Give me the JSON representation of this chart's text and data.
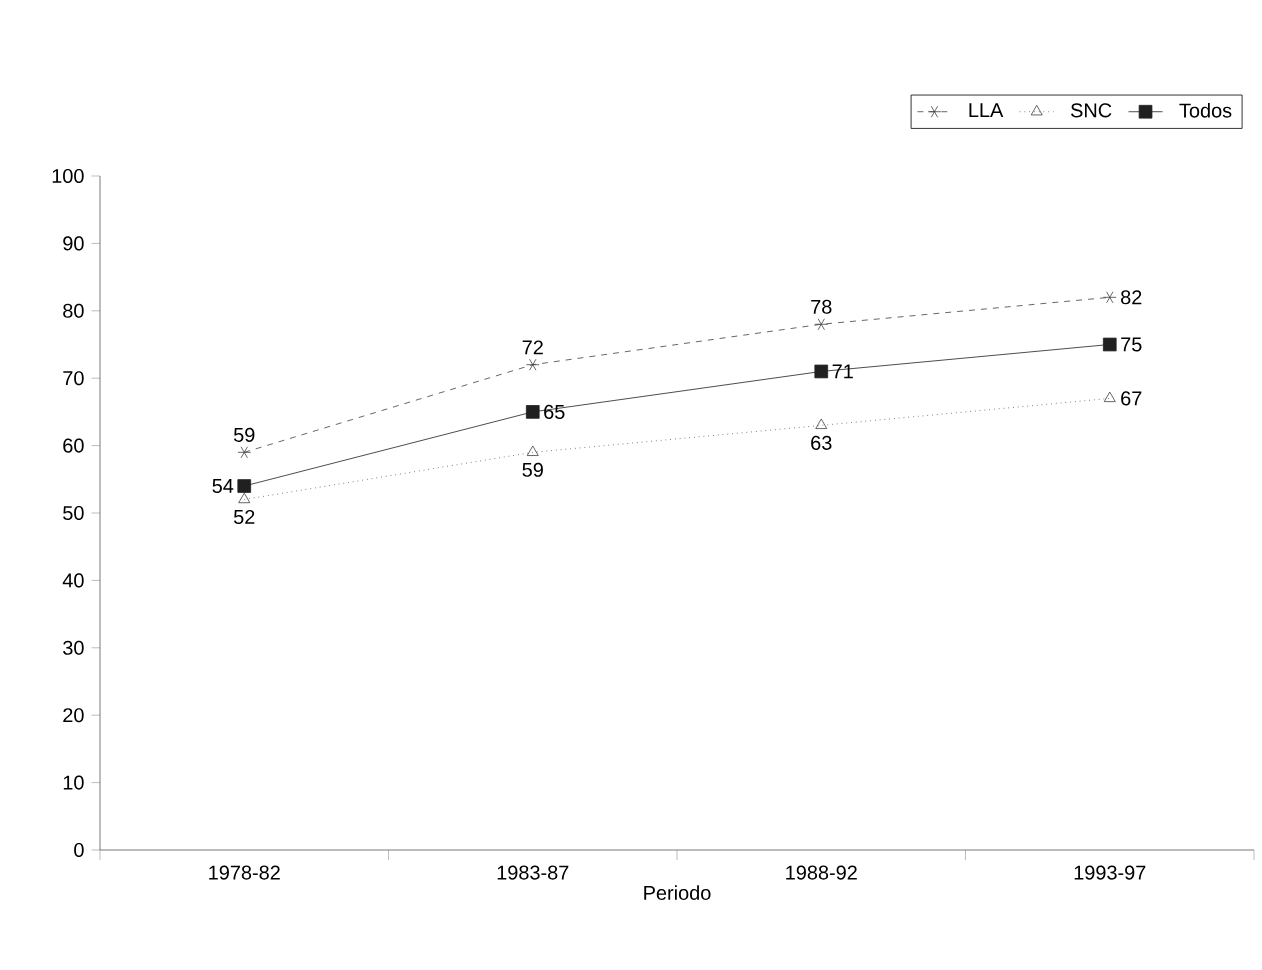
{
  "chart_data": {
    "type": "line",
    "xlabel": "Periodo",
    "categories": [
      "1978-82",
      "1983-87",
      "1988-92",
      "1993-97"
    ],
    "series": [
      {
        "name": "LLA",
        "color": "#404040",
        "values": [
          59,
          72,
          78,
          82
        ],
        "marker": "cross",
        "line_style": "dashed"
      },
      {
        "name": "SNC",
        "color": "#404040",
        "values": [
          52,
          59,
          63,
          67
        ],
        "marker": "triangle",
        "line_style": "dotted"
      },
      {
        "name": "Todos",
        "color": "#202020",
        "values": [
          54,
          65,
          71,
          75
        ],
        "marker": "square",
        "line_style": "solid"
      }
    ],
    "ylim": [
      0,
      100
    ],
    "yticks": [
      0,
      10,
      20,
      30,
      40,
      50,
      60,
      70,
      80,
      90,
      100
    ],
    "grid": false,
    "legend": "top right",
    "data_labels": true
  }
}
